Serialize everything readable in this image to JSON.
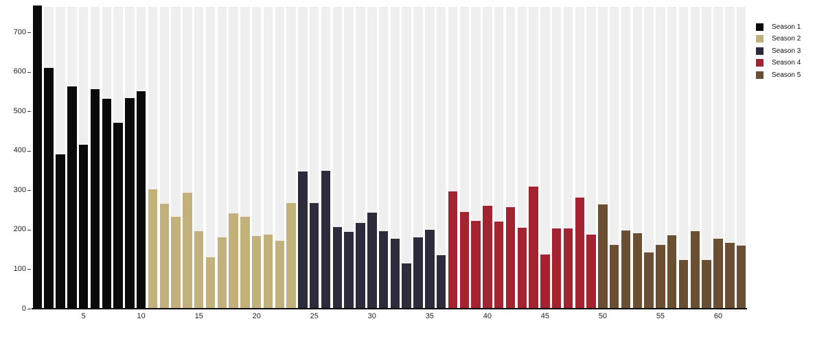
{
  "chart_data": {
    "type": "bar",
    "title": "",
    "xlabel": "",
    "ylabel": "",
    "x_ticks": [
      5,
      10,
      15,
      20,
      25,
      30,
      35,
      40,
      45,
      50,
      55,
      60
    ],
    "y_ticks": [
      0,
      100,
      200,
      300,
      400,
      500,
      600,
      700
    ],
    "ylim": [
      0,
      765
    ],
    "x_range": [
      1,
      62
    ],
    "grid": "background-columns",
    "background_column_color": "#efefef",
    "legend_position": "top-right",
    "series": [
      {
        "name": "Season 1",
        "color": "#0a0a0a",
        "episodes_start": 1,
        "values": [
          768,
          610,
          392,
          564,
          415,
          557,
          532,
          471,
          534,
          551
        ]
      },
      {
        "name": "Season 2",
        "color": "#c2b17b",
        "episodes_start": 11,
        "values": [
          302,
          266,
          233,
          294,
          196,
          130,
          181,
          241,
          233,
          184,
          188,
          173,
          268
        ]
      },
      {
        "name": "Season 3",
        "color": "#2e2b3c",
        "episodes_start": 24,
        "values": [
          347,
          268,
          350,
          207,
          195,
          218,
          243,
          197,
          177,
          115,
          181,
          200,
          135
        ]
      },
      {
        "name": "Season 4",
        "color": "#a32430",
        "episodes_start": 37,
        "values": [
          297,
          245,
          223,
          261,
          221,
          257,
          206,
          310,
          137,
          203,
          203,
          282,
          187
        ]
      },
      {
        "name": "Season 5",
        "color": "#6b4f33",
        "episodes_start": 50,
        "values": [
          264,
          162,
          198,
          192,
          142,
          162,
          186,
          123,
          197,
          123,
          178,
          167,
          160
        ]
      }
    ]
  }
}
